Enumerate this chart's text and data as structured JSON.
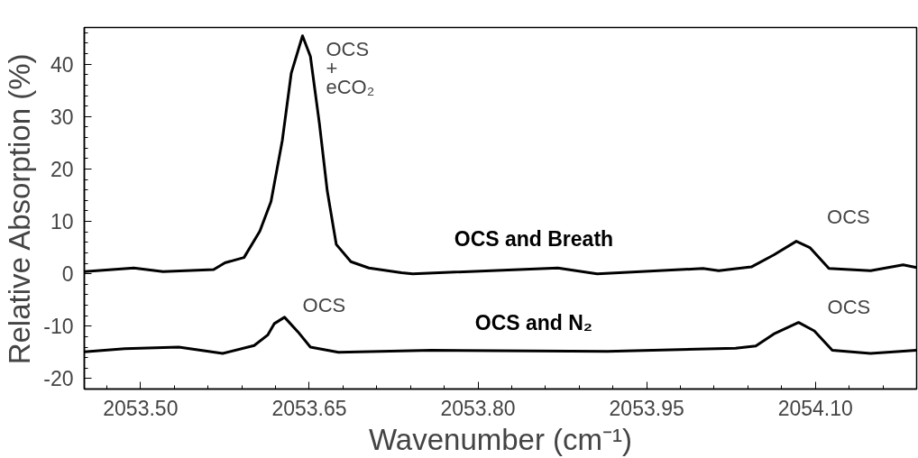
{
  "chart_data": {
    "type": "line",
    "xlabel": "Wavenumber (cm⁻¹)",
    "ylabel": "Relative Absorption (%)",
    "xlim": [
      2053.45,
      2054.19
    ],
    "ylim": [
      -22,
      47
    ],
    "xticks": [
      {
        "value": 2053.5,
        "label": "2053.50"
      },
      {
        "value": 2053.65,
        "label": "2053.65"
      },
      {
        "value": 2053.8,
        "label": "2053.80"
      },
      {
        "value": 2053.95,
        "label": "2053.95"
      },
      {
        "value": 2054.1,
        "label": "2054.10"
      }
    ],
    "yticks": [
      -20,
      -10,
      0,
      10,
      20,
      30,
      40
    ],
    "grid": false,
    "marker": "none",
    "line_style": "solid",
    "series": [
      {
        "name": "OCS and Breath",
        "color": "#000000",
        "x": [
          2053.45,
          2053.494,
          2053.52,
          2053.565,
          2053.575,
          2053.592,
          2053.606,
          2053.616,
          2053.626,
          2053.634,
          2053.644,
          2053.651,
          2053.659,
          2053.666,
          2053.674,
          2053.687,
          2053.703,
          2053.732,
          2053.742,
          2053.871,
          2053.906,
          2054.0,
          2054.014,
          2054.043,
          2054.063,
          2054.083,
          2054.095,
          2054.112,
          2054.149,
          2054.178,
          2054.19
        ],
        "values": [
          0.4,
          1.1,
          0.4,
          0.8,
          2.1,
          3.1,
          8.1,
          13.8,
          25.4,
          38.3,
          45.4,
          41.5,
          28.7,
          15.8,
          5.6,
          2.3,
          1.1,
          0.2,
          0.0,
          1.1,
          0.0,
          1.0,
          0.6,
          1.3,
          3.6,
          6.2,
          5.0,
          1.0,
          0.6,
          1.7,
          1.2
        ]
      },
      {
        "name": "OCS and N₂",
        "color": "#000000",
        "x": [
          2053.45,
          2053.486,
          2053.534,
          2053.573,
          2053.601,
          2053.613,
          2053.619,
          2053.628,
          2053.64,
          2053.651,
          2053.676,
          2053.759,
          2053.915,
          2054.029,
          2054.047,
          2054.063,
          2054.085,
          2054.099,
          2054.115,
          2054.149,
          2054.19
        ],
        "values": [
          -14.9,
          -14.3,
          -14.0,
          -15.2,
          -13.7,
          -11.7,
          -9.5,
          -8.3,
          -11.1,
          -14.0,
          -15.0,
          -14.6,
          -14.8,
          -14.2,
          -13.8,
          -11.5,
          -9.3,
          -10.9,
          -14.6,
          -15.2,
          -14.6
        ]
      }
    ],
    "annotations": [
      {
        "text": "OCS\n+\neCO₂",
        "x": 2053.644,
        "y": 45.4
      },
      {
        "text": "OCS",
        "x": 2053.628,
        "y": -8.3
      },
      {
        "text": "OCS",
        "x": 2054.083,
        "y": 6.2
      },
      {
        "text": "OCS",
        "x": 2054.085,
        "y": -9.3
      }
    ]
  }
}
